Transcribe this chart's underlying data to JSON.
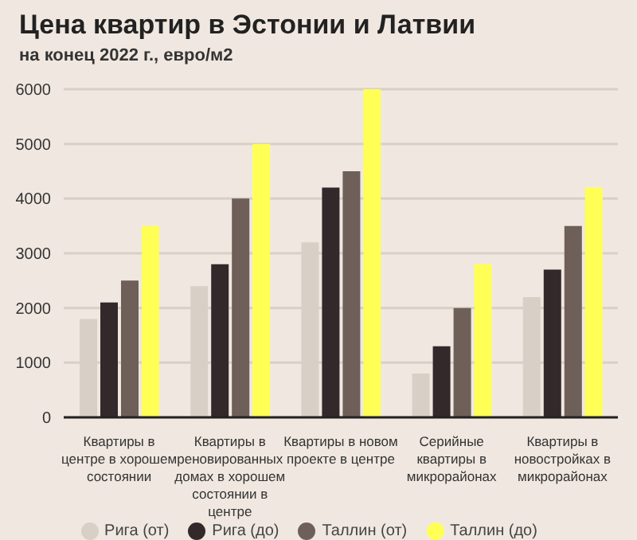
{
  "chart_data": {
    "type": "bar",
    "title": "Цена квартир в Эстонии и Латвии",
    "subtitle": "на конец 2022 г., евро/м2",
    "categories": [
      "Квартиры в центре в хорошем состоянии",
      "Квартиры в реновированных домах в хорошем состоянии в центре",
      "Квартиры в новом проекте в центре",
      "Серийные квартиры в микрорайонах",
      "Квартиры в новостройках в микрорайонах"
    ],
    "series": [
      {
        "name": "Рига (от)",
        "color": "#d8d0c6",
        "values": [
          1800,
          2400,
          3200,
          800,
          2200
        ]
      },
      {
        "name": "Рига (до)",
        "color": "#33292a",
        "values": [
          2100,
          2800,
          4200,
          1300,
          2700
        ]
      },
      {
        "name": "Таллин (от)",
        "color": "#6e5f59",
        "values": [
          2500,
          4000,
          4500,
          2000,
          3500
        ]
      },
      {
        "name": "Таллин (до)",
        "color": "#ffff55",
        "values": [
          3500,
          5000,
          6000,
          2800,
          4200
        ]
      }
    ],
    "ylim": [
      0,
      6000
    ],
    "yticks": [
      0,
      1000,
      2000,
      3000,
      4000,
      5000,
      6000
    ],
    "grid": "y",
    "legend": "bottom",
    "marker": "circle"
  }
}
